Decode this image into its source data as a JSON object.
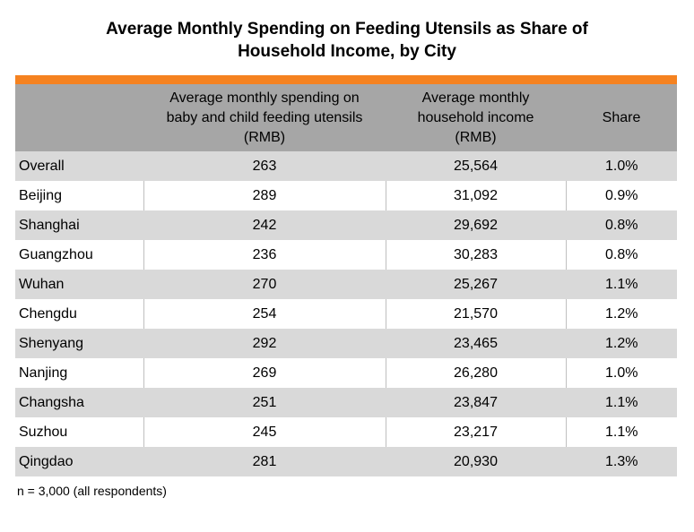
{
  "title": {
    "line1": "Average Monthly Spending on Feeding Utensils as Share of",
    "line2": "Household Income, by City"
  },
  "colors": {
    "accent_bar": "#f58220",
    "header_bg": "#a6a6a6",
    "stripe": "#d9d9d9"
  },
  "table": {
    "headers": [
      "",
      "Average monthly spending on baby and child feeding utensils (RMB)",
      "Average monthly household income (RMB)",
      "Share"
    ],
    "rows": [
      [
        "Overall",
        "263",
        "25,564",
        "1.0%"
      ],
      [
        "Beijing",
        "289",
        "31,092",
        "0.9%"
      ],
      [
        "Shanghai",
        "242",
        "29,692",
        "0.8%"
      ],
      [
        "Guangzhou",
        "236",
        "30,283",
        "0.8%"
      ],
      [
        "Wuhan",
        "270",
        "25,267",
        "1.1%"
      ],
      [
        "Chengdu",
        "254",
        "21,570",
        "1.2%"
      ],
      [
        "Shenyang",
        "292",
        "23,465",
        "1.2%"
      ],
      [
        "Nanjing",
        "269",
        "26,280",
        "1.0%"
      ],
      [
        "Changsha",
        "251",
        "23,847",
        "1.1%"
      ],
      [
        "Suzhou",
        "245",
        "23,217",
        "1.1%"
      ],
      [
        "Qingdao",
        "281",
        "20,930",
        "1.3%"
      ]
    ]
  },
  "footnote": "n = 3,000 (all respondents)"
}
